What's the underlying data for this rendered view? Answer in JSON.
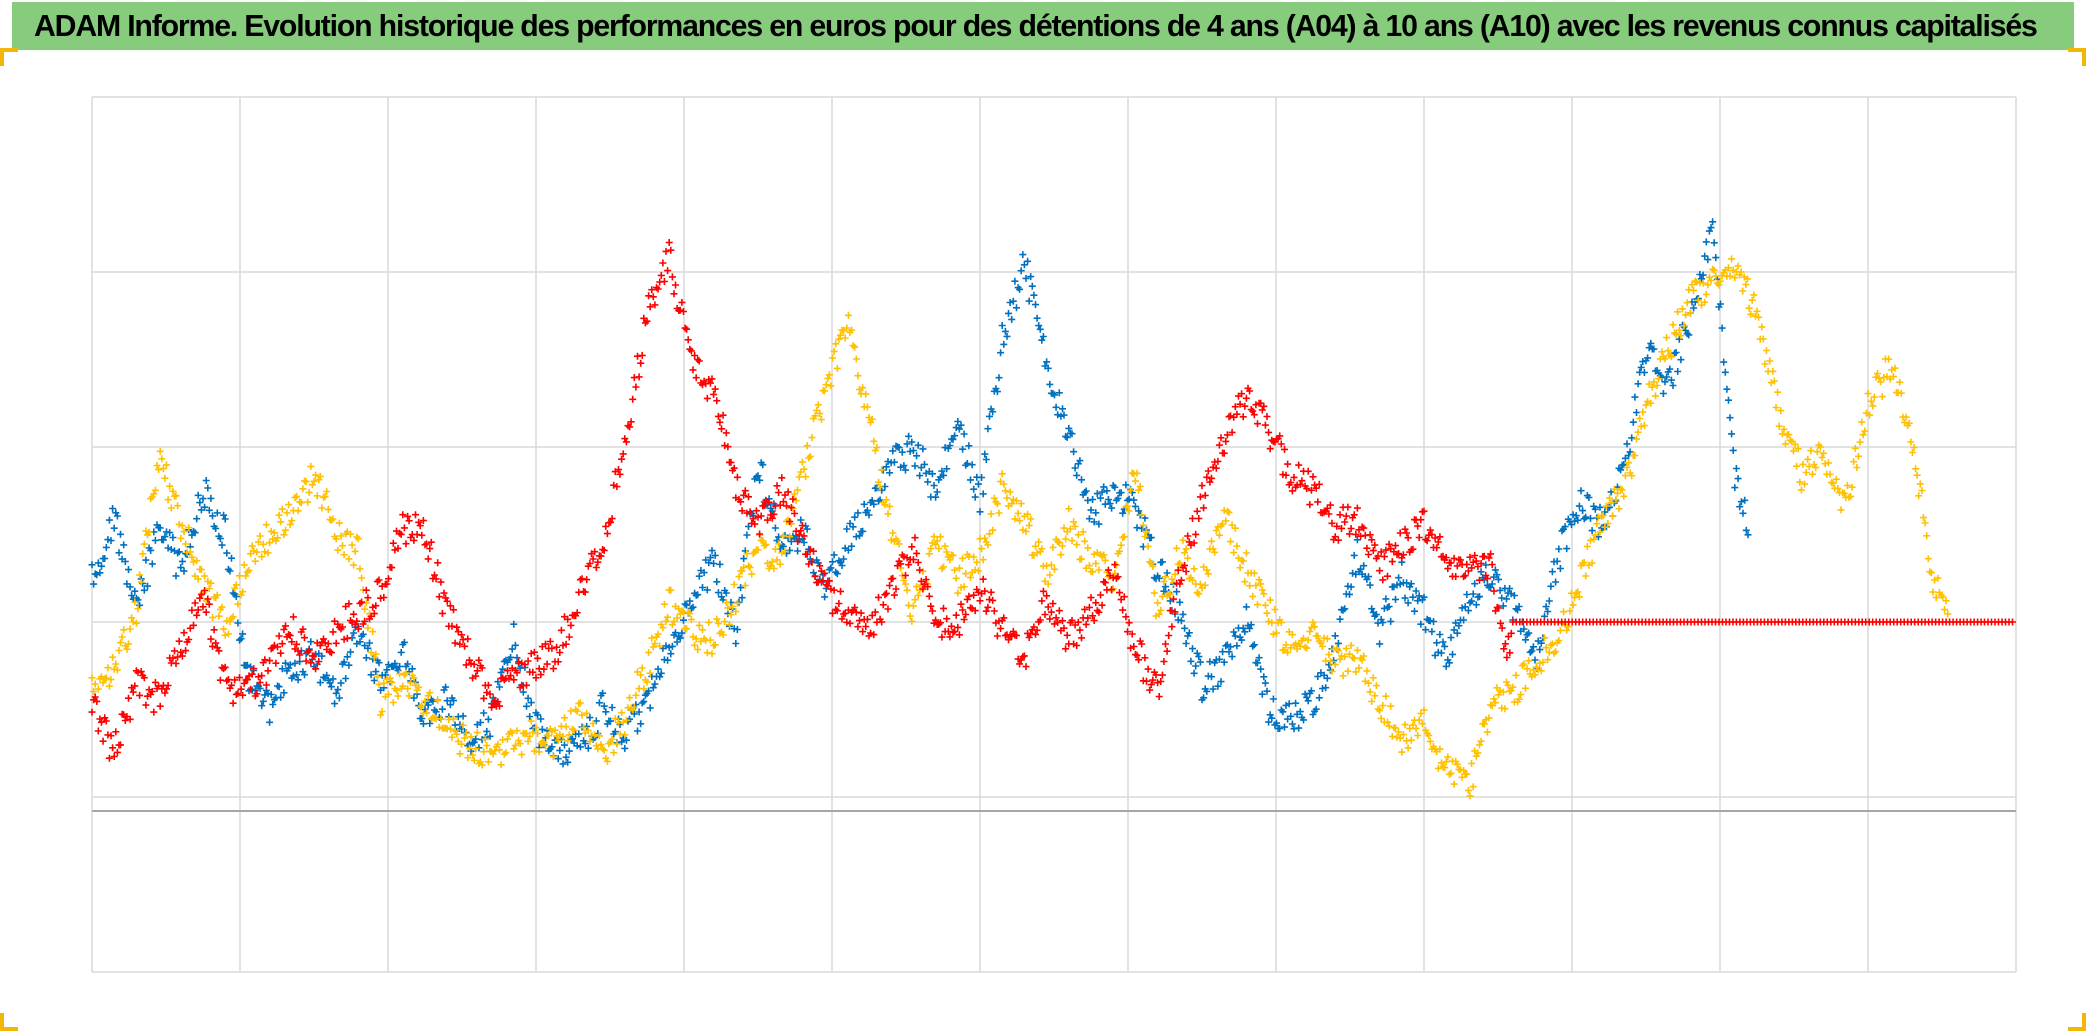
{
  "title": "ADAM Informe. Evolution historique des performances en euros pour des détentions de 4 ans (A04) à 10 ans (A10) avec les revenus connus capitalisés",
  "colors": {
    "title_bar": "#86cc7c",
    "corner_accent": "#f2b705",
    "grid": "#d9d9d9",
    "axis": "#a6a6a6"
  },
  "chart_data": {
    "type": "scatter",
    "marker": "plus",
    "title": "ADAM Informe. Evolution historique des performances en euros pour des détentions de 4 ans (A04) à 10 ans (A10) avec les revenus connus capitalisés",
    "xlabel": "",
    "ylabel": "",
    "xlim": [
      0,
      13
    ],
    "ylim": [
      -1,
      4
    ],
    "grid": true,
    "x_gridlines": 13,
    "y_gridlines": [
      -1,
      0,
      1,
      2,
      3,
      4
    ],
    "zero_line": 0,
    "tick_labels_visible": false,
    "legend": "none",
    "series": [
      {
        "color": "#0070c0",
        "x": [
          0,
          0.15,
          0.3,
          0.45,
          0.6,
          0.75,
          0.9,
          1.05,
          1.2,
          1.35,
          1.5,
          1.65,
          1.8,
          1.95,
          2.1,
          2.25,
          2.4,
          2.55,
          2.7,
          2.85,
          3.0,
          3.15,
          3.3,
          3.45,
          3.6,
          3.75,
          3.9,
          4.05,
          4.2,
          4.35,
          4.5,
          4.65,
          4.8,
          4.95,
          5.1,
          5.25,
          5.4,
          5.55,
          5.7,
          5.85,
          6.0,
          6.15,
          6.3,
          6.45,
          6.6,
          6.75,
          6.9,
          7.05,
          7.2,
          7.35,
          7.5,
          7.65,
          7.8,
          7.95,
          8.1,
          8.25,
          8.4,
          8.55,
          8.7,
          8.85,
          9.0,
          9.15,
          9.3,
          9.45,
          9.6,
          9.75,
          9.9,
          10.05,
          10.2,
          10.35,
          10.5,
          10.65,
          10.8,
          10.95,
          11.1,
          11.2
        ],
        "y": [
          1.25,
          1.6,
          1.05,
          1.55,
          1.3,
          1.75,
          1.5,
          0.7,
          0.5,
          0.75,
          0.8,
          0.55,
          0.95,
          0.65,
          0.85,
          0.45,
          0.55,
          0.3,
          0.45,
          0.9,
          0.4,
          0.25,
          0.3,
          0.5,
          0.35,
          0.55,
          0.9,
          1.1,
          1.35,
          0.95,
          1.9,
          1.45,
          1.5,
          1.2,
          1.45,
          1.65,
          1.9,
          2.0,
          1.75,
          2.15,
          1.7,
          2.6,
          3.05,
          2.45,
          2.05,
          1.6,
          1.75,
          1.65,
          1.3,
          1.05,
          0.65,
          0.75,
          1.05,
          0.5,
          0.45,
          0.55,
          0.85,
          1.4,
          0.95,
          1.25,
          1.05,
          0.75,
          1.15,
          1.25,
          1.1,
          0.75,
          1.35,
          1.7,
          1.55,
          1.85,
          2.55,
          2.35,
          2.75,
          3.25,
          1.85,
          1.5
        ]
      },
      {
        "color": "#ffc000",
        "x": [
          0,
          0.15,
          0.3,
          0.45,
          0.6,
          0.75,
          0.9,
          1.05,
          1.2,
          1.35,
          1.5,
          1.65,
          1.8,
          1.95,
          2.1,
          2.25,
          2.4,
          2.55,
          2.7,
          2.85,
          3.0,
          3.15,
          3.3,
          3.45,
          3.6,
          3.75,
          3.9,
          4.05,
          4.2,
          4.35,
          4.5,
          4.65,
          4.8,
          4.95,
          5.1,
          5.25,
          5.4,
          5.55,
          5.7,
          5.85,
          6.0,
          6.15,
          6.3,
          6.45,
          6.6,
          6.75,
          6.9,
          7.05,
          7.2,
          7.35,
          7.5,
          7.65,
          7.8,
          7.95,
          8.1,
          8.25,
          8.4,
          8.55,
          8.7,
          8.85,
          9.0,
          9.15,
          9.3,
          9.45,
          9.6,
          9.75,
          9.9,
          10.05,
          10.2,
          10.35,
          10.5,
          10.65,
          10.8,
          10.95,
          11.1,
          11.25,
          11.4,
          11.55,
          11.7,
          11.85,
          12.0,
          12.15,
          12.3,
          12.45,
          12.55
        ],
        "y": [
          0.6,
          0.75,
          1.05,
          1.95,
          1.55,
          1.25,
          0.95,
          1.35,
          1.5,
          1.6,
          1.85,
          1.5,
          1.4,
          0.55,
          0.7,
          0.55,
          0.4,
          0.3,
          0.25,
          0.3,
          0.35,
          0.3,
          0.5,
          0.25,
          0.45,
          0.75,
          1.1,
          0.95,
          0.9,
          1.15,
          1.45,
          1.35,
          1.85,
          2.3,
          2.7,
          2.15,
          1.55,
          1.05,
          1.45,
          1.25,
          1.4,
          1.75,
          1.6,
          1.25,
          1.55,
          1.35,
          1.25,
          1.85,
          1.05,
          1.4,
          1.2,
          1.6,
          1.3,
          1.05,
          0.85,
          0.95,
          0.75,
          0.8,
          0.55,
          0.35,
          0.4,
          0.15,
          0.05,
          0.5,
          0.6,
          0.75,
          0.9,
          1.2,
          1.6,
          1.75,
          2.25,
          2.55,
          2.85,
          2.95,
          3.05,
          2.75,
          2.2,
          1.85,
          1.95,
          1.65,
          2.25,
          2.45,
          2.05,
          1.2,
          1.05
        ]
      },
      {
        "color": "#ff0000",
        "x": [
          0,
          0.15,
          0.3,
          0.45,
          0.6,
          0.75,
          0.9,
          1.05,
          1.2,
          1.35,
          1.5,
          1.65,
          1.8,
          1.95,
          2.1,
          2.25,
          2.4,
          2.55,
          2.7,
          2.85,
          3.0,
          3.15,
          3.3,
          3.45,
          3.6,
          3.75,
          3.9,
          4.05,
          4.2,
          4.35,
          4.5,
          4.65,
          4.8,
          4.95,
          5.1,
          5.25,
          5.4,
          5.55,
          5.7,
          5.85,
          6.0,
          6.15,
          6.3,
          6.45,
          6.6,
          6.75,
          6.9,
          7.05,
          7.2,
          7.35,
          7.5,
          7.65,
          7.8,
          7.95,
          8.1,
          8.25,
          8.4,
          8.55,
          8.7,
          8.85,
          9.0,
          9.15,
          9.3,
          9.45,
          9.55,
          9.6
        ],
        "y": [
          0.55,
          0.25,
          0.65,
          0.55,
          0.85,
          1.15,
          0.65,
          0.6,
          0.75,
          0.95,
          0.8,
          0.95,
          1.05,
          1.15,
          1.55,
          1.5,
          1.05,
          0.8,
          0.55,
          0.7,
          0.75,
          0.85,
          1.15,
          1.45,
          2.0,
          2.75,
          3.1,
          2.5,
          2.3,
          1.8,
          1.55,
          1.75,
          1.5,
          1.2,
          1.05,
          0.95,
          1.2,
          1.45,
          1.0,
          1.0,
          1.2,
          0.95,
          0.8,
          1.15,
          0.9,
          1.05,
          1.3,
          0.85,
          0.6,
          1.25,
          1.7,
          2.05,
          2.3,
          2.1,
          1.85,
          1.75,
          1.55,
          1.6,
          1.3,
          1.45,
          1.55,
          1.35,
          1.3,
          1.3,
          0.8,
          1.0
        ]
      },
      {
        "color": "#ff0000",
        "x": [
          9.6,
          13.0
        ],
        "y": [
          1.0,
          1.0
        ]
      }
    ]
  }
}
